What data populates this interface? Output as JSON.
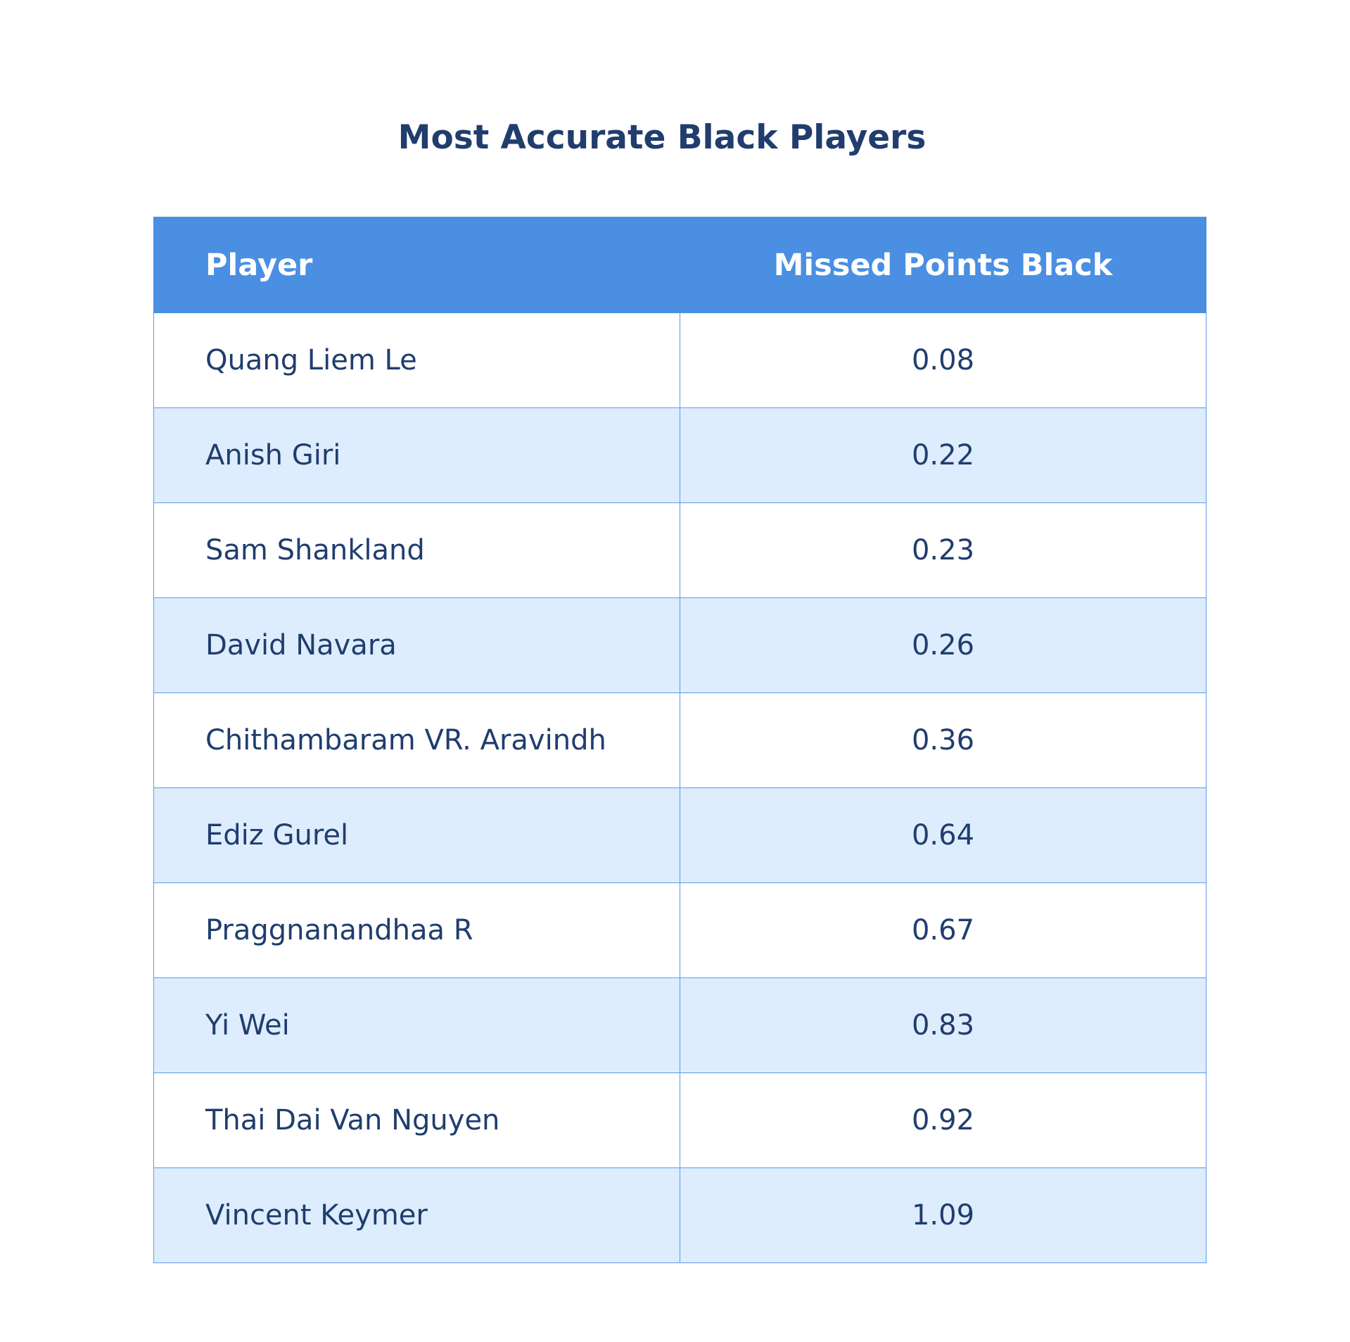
{
  "title": "Most Accurate Black Players",
  "colors": {
    "header_bg": "#4a8fe2",
    "header_text": "#ffffff",
    "body_text": "#203d6e",
    "alt_row_bg": "#ddedfd",
    "row_bg": "#ffffff",
    "grid_line": "#5b9be6"
  },
  "chart_data": {
    "type": "table",
    "title": "Most Accurate Black Players",
    "columns": [
      "Player",
      "Missed Points Black"
    ],
    "rows": [
      {
        "player": "Quang Liem Le",
        "value": "0.08"
      },
      {
        "player": "Anish Giri",
        "value": "0.22"
      },
      {
        "player": "Sam Shankland",
        "value": "0.23"
      },
      {
        "player": "David Navara",
        "value": "0.26"
      },
      {
        "player": "Chithambaram VR. Aravindh",
        "value": "0.36"
      },
      {
        "player": "Ediz Gurel",
        "value": "0.64"
      },
      {
        "player": "Praggnanandhaa R",
        "value": "0.67"
      },
      {
        "player": "Yi Wei",
        "value": "0.83"
      },
      {
        "player": "Thai Dai Van Nguyen",
        "value": "0.92"
      },
      {
        "player": "Vincent Keymer",
        "value": "1.09"
      }
    ]
  }
}
